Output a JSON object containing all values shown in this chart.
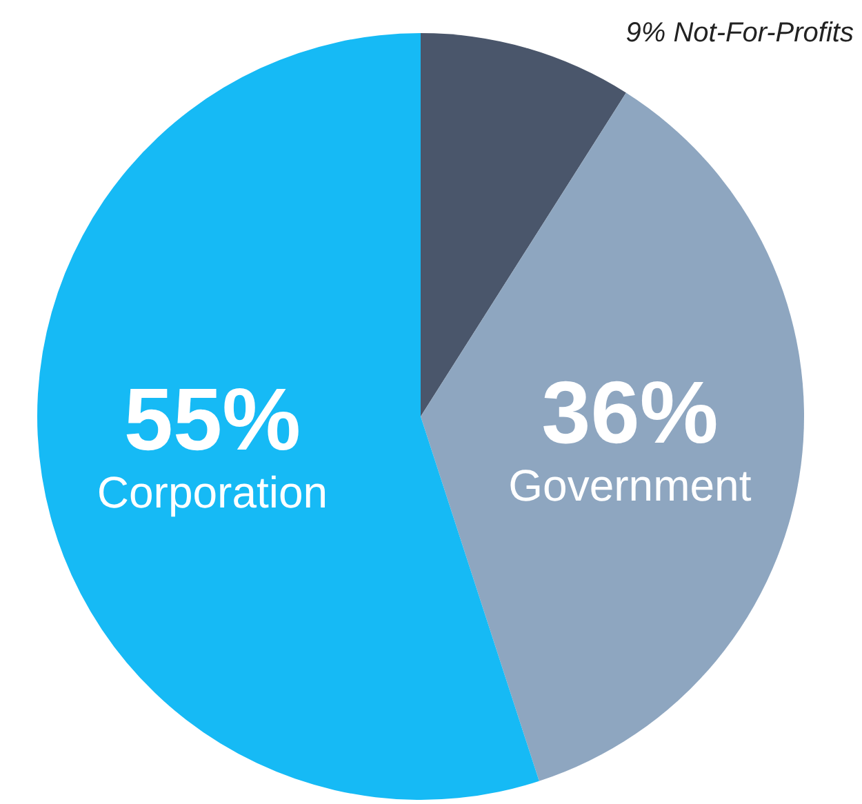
{
  "chart_data": {
    "type": "pie",
    "categories": [
      "Not-For-Profits",
      "Government",
      "Corporation"
    ],
    "values": [
      9,
      36,
      55
    ],
    "colors": [
      "#4a566b",
      "#8ea6c0",
      "#16baf5"
    ],
    "value_labels": [
      "9%",
      "36%",
      "55%"
    ]
  }
}
